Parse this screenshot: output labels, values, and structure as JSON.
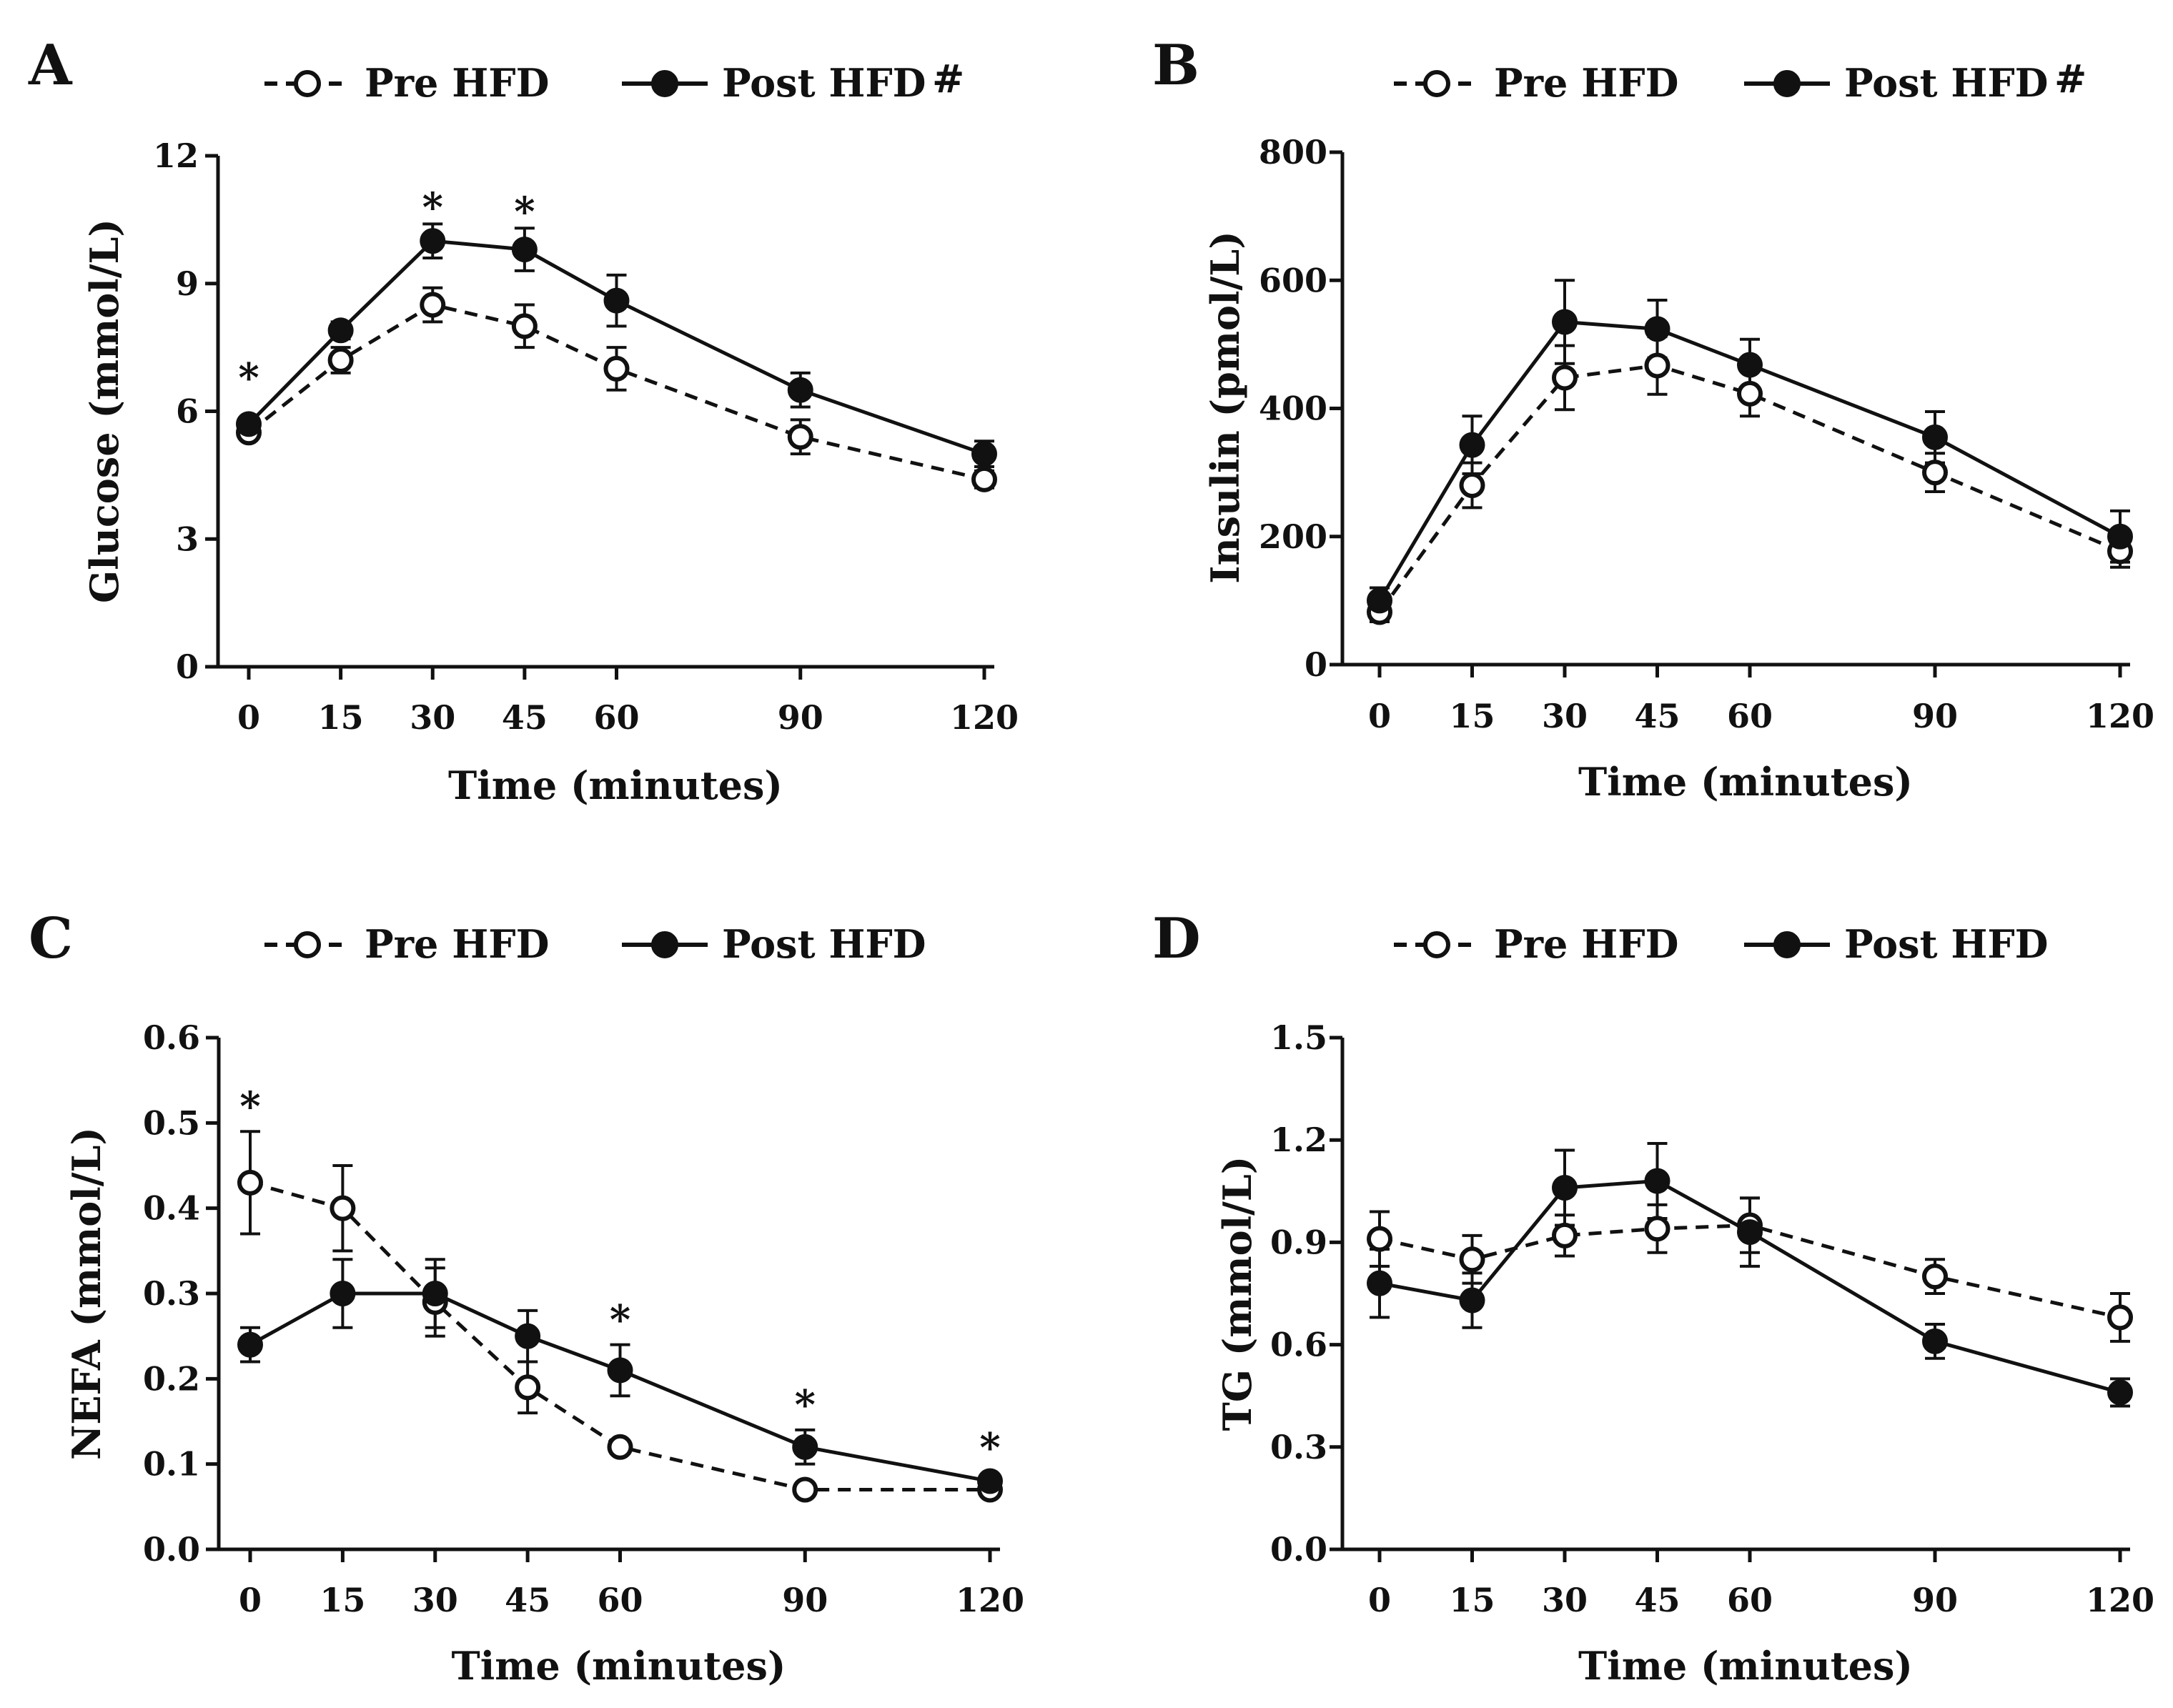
{
  "figure": {
    "background": "#ffffff",
    "line_color": "#111111"
  },
  "chart_data": [
    {
      "panel": "A",
      "type": "line",
      "xlabel": "Time (minutes)",
      "ylabel": "Glucose (mmol/L)",
      "x": [
        0,
        15,
        30,
        45,
        60,
        90,
        120
      ],
      "xticks": [
        "0",
        "15",
        "30",
        "45",
        "60",
        "90",
        "120"
      ],
      "ylim": [
        0,
        12
      ],
      "yticks": [
        "0",
        "3",
        "6",
        "9",
        "12"
      ],
      "legend": {
        "placement": "top",
        "labels": [
          "Pre HFD",
          "Post HFD"
        ],
        "note": "#",
        "note_series": 1
      },
      "series": [
        {
          "name": "Pre HFD",
          "style": "dashed-open",
          "values": [
            5.5,
            7.2,
            8.5,
            8.0,
            7.0,
            5.4,
            4.4
          ],
          "errors": [
            0.15,
            0.3,
            0.4,
            0.5,
            0.5,
            0.4,
            0.2
          ]
        },
        {
          "name": "Post HFD",
          "style": "solid-filled",
          "values": [
            5.7,
            7.9,
            10.0,
            9.8,
            8.6,
            6.5,
            5.0
          ],
          "errors": [
            0.1,
            0.2,
            0.4,
            0.5,
            0.6,
            0.4,
            0.3
          ]
        }
      ],
      "significance": [
        {
          "x": 0,
          "y": 6.8,
          "label": "*"
        },
        {
          "x": 30,
          "y": 10.8,
          "label": "*"
        },
        {
          "x": 45,
          "y": 10.7,
          "label": "*"
        }
      ]
    },
    {
      "panel": "B",
      "type": "line",
      "xlabel": "Time (minutes)",
      "ylabel": "Insulin (pmol/L)",
      "x": [
        0,
        15,
        30,
        45,
        60,
        90,
        120
      ],
      "xticks": [
        "0",
        "15",
        "30",
        "45",
        "60",
        "90",
        "120"
      ],
      "ylim": [
        0,
        800
      ],
      "yticks": [
        "0",
        "200",
        "400",
        "600",
        "800"
      ],
      "legend": {
        "placement": "top",
        "labels": [
          "Pre HFD",
          "Post HFD"
        ],
        "note": "#",
        "note_series": 1
      },
      "series": [
        {
          "name": "Pre HFD",
          "style": "dashed-open",
          "values": [
            82,
            280,
            448,
            467,
            423,
            300,
            177
          ],
          "errors": [
            15,
            35,
            50,
            45,
            35,
            30,
            25
          ]
        },
        {
          "name": "Post HFD",
          "style": "solid-filled",
          "values": [
            100,
            343,
            535,
            524,
            468,
            355,
            200
          ],
          "errors": [
            20,
            45,
            65,
            45,
            40,
            40,
            40
          ]
        }
      ],
      "significance": []
    },
    {
      "panel": "C",
      "type": "line",
      "xlabel": "Time (minutes)",
      "ylabel": "NEFA (mmol/L)",
      "x": [
        0,
        15,
        30,
        45,
        60,
        90,
        120
      ],
      "xticks": [
        "0",
        "15",
        "30",
        "45",
        "60",
        "90",
        "120"
      ],
      "ylim": [
        0.0,
        0.6
      ],
      "yticks": [
        "0.0",
        "0.1",
        "0.2",
        "0.3",
        "0.4",
        "0.5",
        "0.6"
      ],
      "legend": {
        "placement": "top",
        "labels": [
          "Pre HFD",
          "Post HFD"
        ]
      },
      "series": [
        {
          "name": "Pre HFD",
          "style": "dashed-open",
          "values": [
            0.43,
            0.4,
            0.29,
            0.19,
            0.12,
            0.07,
            0.07
          ],
          "errors": [
            0.06,
            0.05,
            0.04,
            0.03,
            0.005,
            0.005,
            0.005
          ]
        },
        {
          "name": "Post HFD",
          "style": "solid-filled",
          "values": [
            0.24,
            0.3,
            0.3,
            0.25,
            0.21,
            0.12,
            0.08
          ],
          "errors": [
            0.02,
            0.04,
            0.04,
            0.03,
            0.03,
            0.02,
            0.005
          ]
        }
      ],
      "significance": [
        {
          "x": 0,
          "y": 0.52,
          "label": "*"
        },
        {
          "x": 60,
          "y": 0.27,
          "label": "*"
        },
        {
          "x": 90,
          "y": 0.17,
          "label": "*"
        },
        {
          "x": 120,
          "y": 0.12,
          "label": "*"
        }
      ]
    },
    {
      "panel": "D",
      "type": "line",
      "xlabel": "Time (minutes)",
      "ylabel": "TG (mmol/L)",
      "x": [
        0,
        15,
        30,
        45,
        60,
        90,
        120
      ],
      "xticks": [
        "0",
        "15",
        "30",
        "45",
        "60",
        "90",
        "120"
      ],
      "ylim": [
        0.0,
        1.5
      ],
      "yticks": [
        "0.0",
        "0.3",
        "0.6",
        "0.9",
        "1.2",
        "1.5"
      ],
      "legend": {
        "placement": "top",
        "labels": [
          "Pre HFD",
          "Post HFD"
        ]
      },
      "series": [
        {
          "name": "Pre HFD",
          "style": "dashed-open",
          "values": [
            0.91,
            0.85,
            0.92,
            0.94,
            0.95,
            0.8,
            0.68
          ],
          "errors": [
            0.08,
            0.07,
            0.06,
            0.07,
            0.08,
            0.05,
            0.07
          ]
        },
        {
          "name": "Post HFD",
          "style": "solid-filled",
          "values": [
            0.78,
            0.73,
            1.06,
            1.08,
            0.93,
            0.61,
            0.46
          ],
          "errors": [
            0.1,
            0.08,
            0.11,
            0.11,
            0.1,
            0.05,
            0.04
          ]
        }
      ],
      "significance": []
    }
  ]
}
